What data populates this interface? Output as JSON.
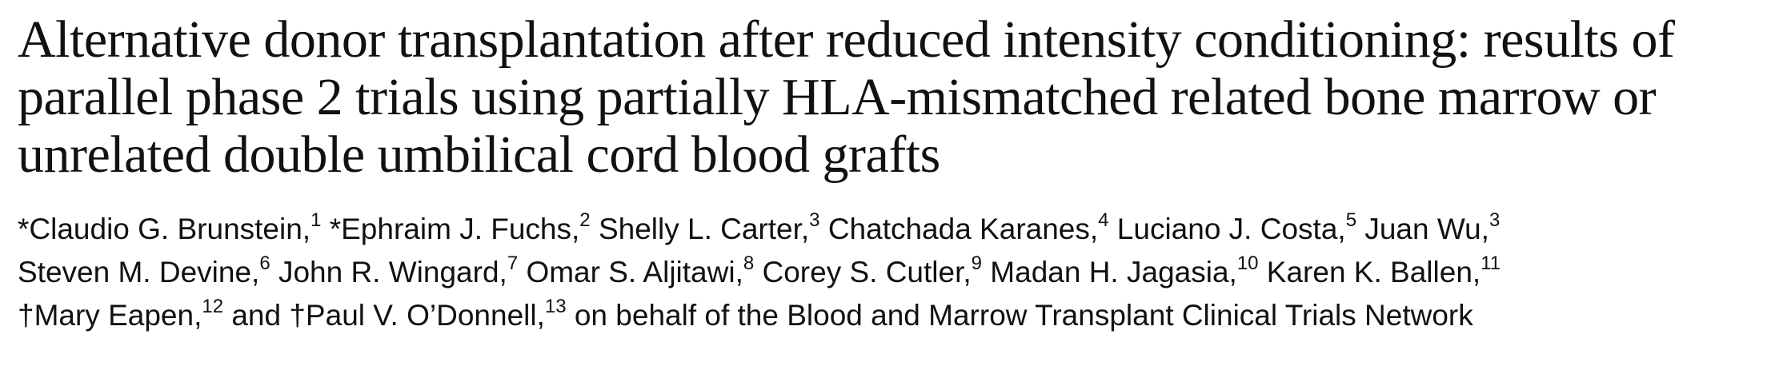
{
  "title": {
    "lines": [
      "Alternative donor transplantation after reduced intensity conditioning: results of",
      "parallel phase 2 trials using partially HLA-mismatched related bone marrow or",
      "unrelated double umbilical cord blood grafts"
    ]
  },
  "authors": {
    "line1": [
      {
        "name": "*Claudio G. Brunstein,",
        "sup": "1"
      },
      {
        "name": "*Ephraim J. Fuchs,",
        "sup": "2"
      },
      {
        "name": "Shelly L. Carter,",
        "sup": "3"
      },
      {
        "name": "Chatchada Karanes,",
        "sup": "4"
      },
      {
        "name": "Luciano J. Costa,",
        "sup": "5"
      },
      {
        "name": "Juan Wu,",
        "sup": "3"
      }
    ],
    "line2": [
      {
        "name": "Steven M. Devine,",
        "sup": "6"
      },
      {
        "name": "John R. Wingard,",
        "sup": "7"
      },
      {
        "name": "Omar S. Aljitawi,",
        "sup": "8"
      },
      {
        "name": "Corey S. Cutler,",
        "sup": "9"
      },
      {
        "name": "Madan H. Jagasia,",
        "sup": "10"
      },
      {
        "name": "Karen K. Ballen,",
        "sup": "11"
      }
    ],
    "line3": [
      {
        "name": "†Mary Eapen,",
        "sup": "12"
      },
      {
        "name": "and †Paul V. O’Donnell,",
        "sup": "13"
      }
    ],
    "collaboration": "on behalf of the Blood and Marrow Transplant Clinical Trials Network"
  }
}
